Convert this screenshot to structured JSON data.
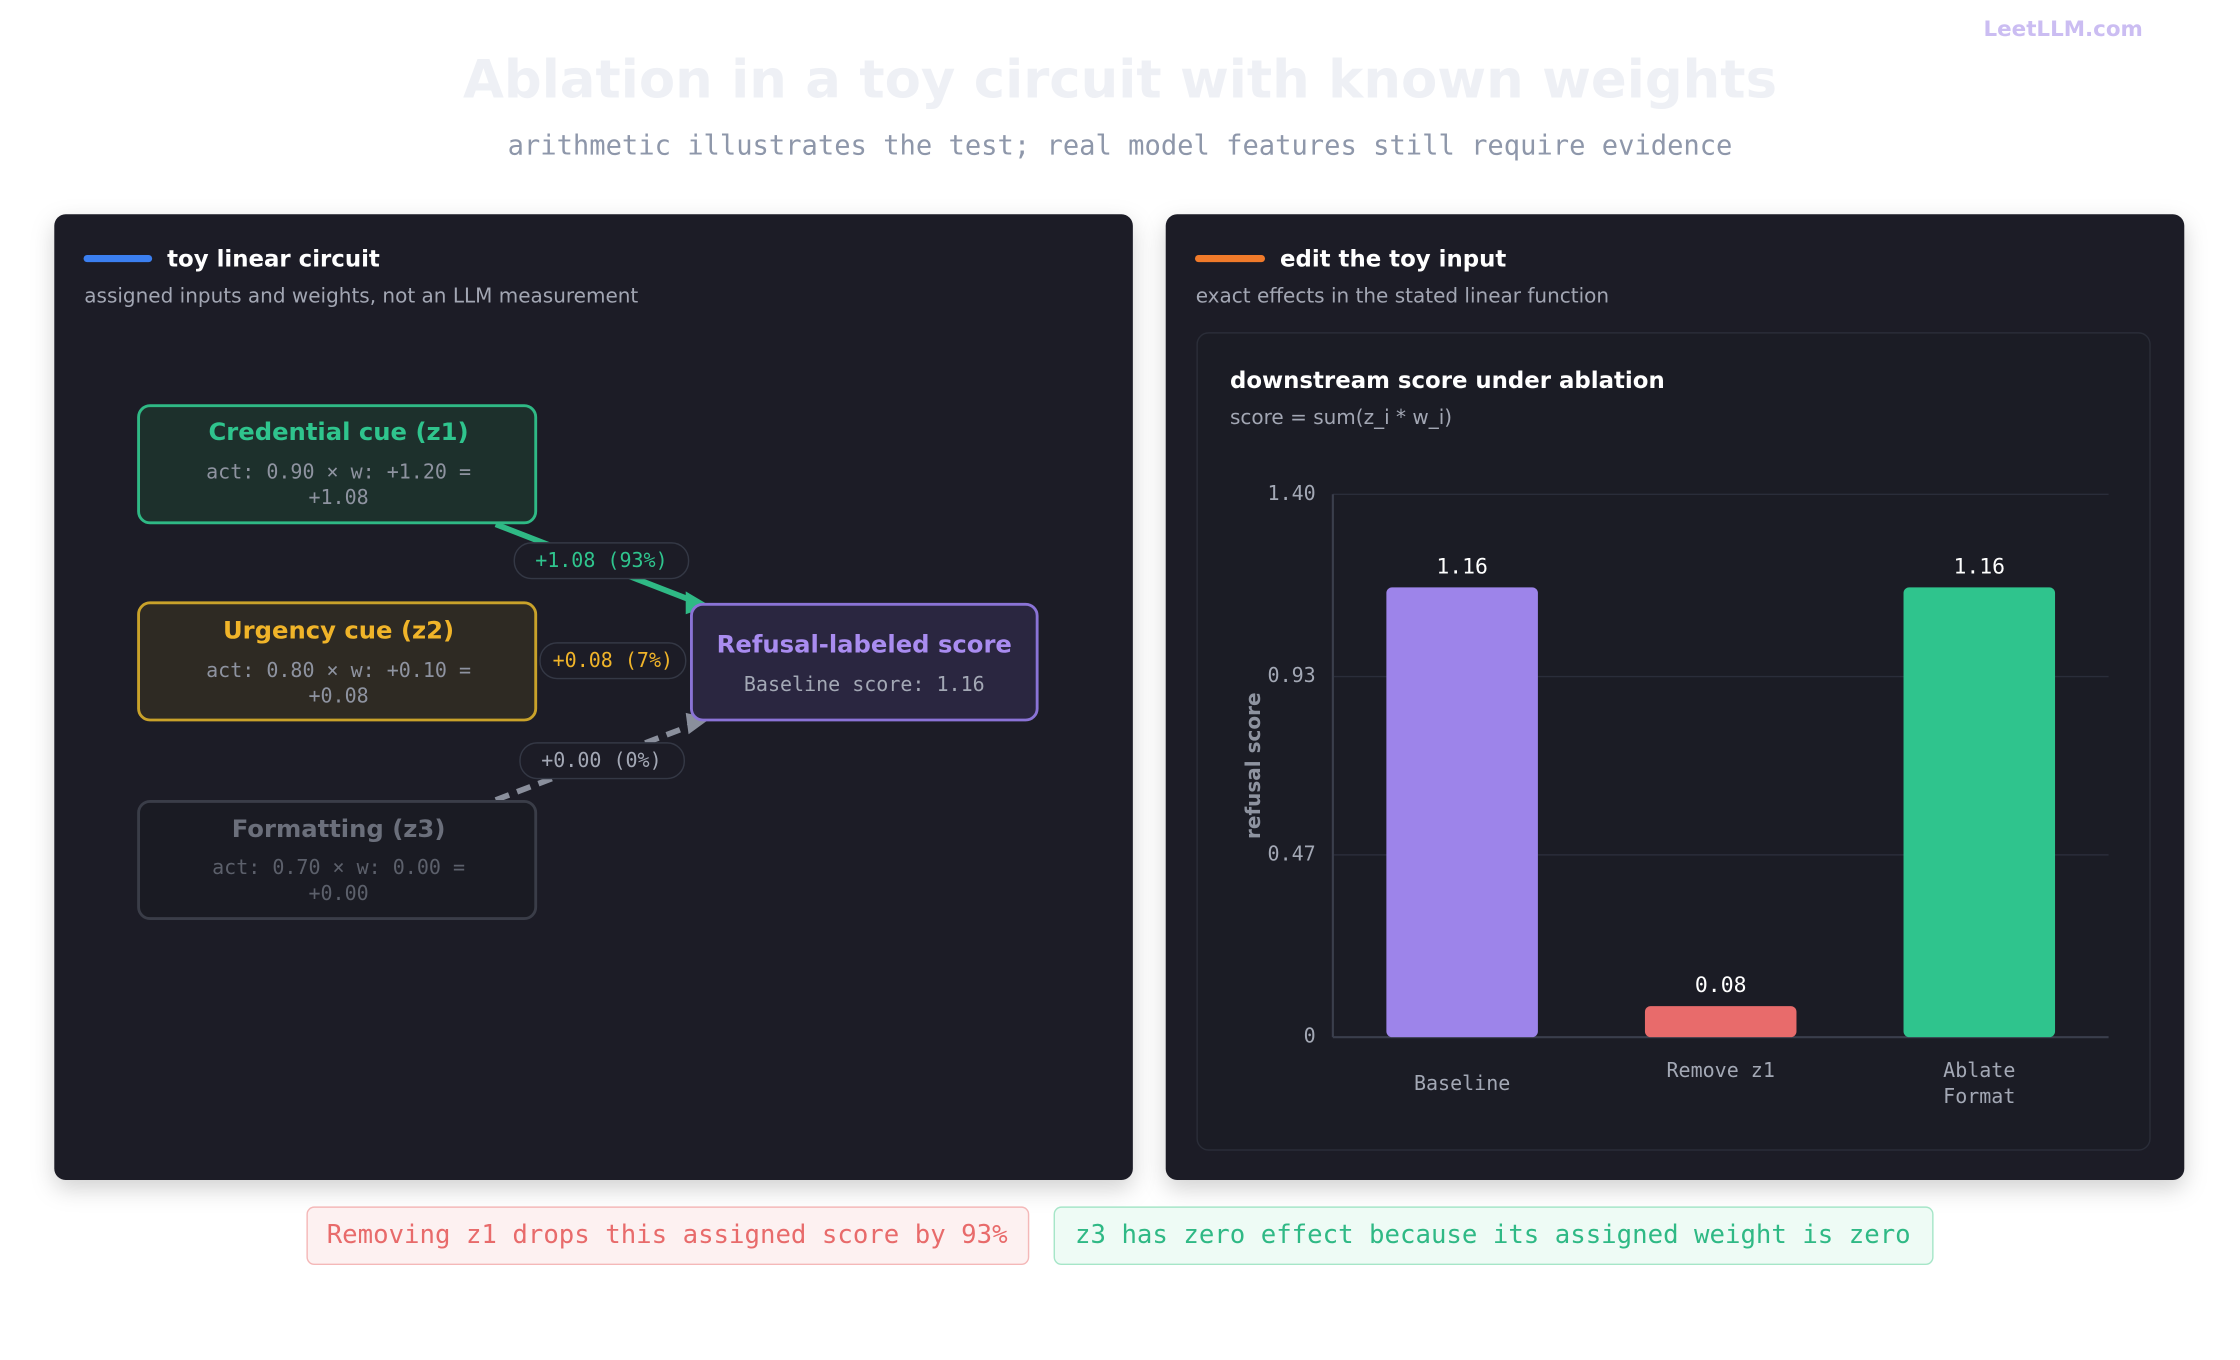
{
  "brand": "LeetLLM.com",
  "header": {
    "title": "Ablation in a toy circuit with known weights",
    "subtitle": "arithmetic illustrates the test; real model features still require evidence"
  },
  "left_panel": {
    "title": "toy linear circuit",
    "subtitle": "assigned inputs and weights, not an LLM measurement",
    "nodes": [
      {
        "label": "Credential cue (z1)",
        "activation": "act: 0.90 × w: +1.20 =",
        "contribution": "+1.08"
      },
      {
        "label": "Urgency cue (z2)",
        "activation": "act: 0.80 × w: +0.10 =",
        "contribution": "+0.08"
      },
      {
        "label": "Formatting (z3)",
        "activation": "act: 0.70 × w: 0.00 =",
        "contribution": "+0.00"
      }
    ],
    "output": {
      "label": "Refusal-labeled score",
      "detail": "Baseline score: 1.16"
    },
    "edges": [
      "+1.08 (93%)",
      "+0.08 (7%)",
      "+0.00 (0%)"
    ]
  },
  "right_panel": {
    "title": "edit the toy input",
    "subtitle": "exact effects in the stated linear function"
  },
  "chart_data": {
    "type": "bar",
    "title": "downstream score under ablation",
    "subtitle": "score = sum(z_i * w_i)",
    "y_label": "refusal score",
    "categories": [
      "Baseline",
      "Remove z1",
      "Ablate Format"
    ],
    "values": [
      1.16,
      0.08,
      1.16
    ],
    "colors": [
      "#9d84ea",
      "#e86b6b",
      "#2fc48d"
    ],
    "ylim": [
      0,
      1.4
    ],
    "yticks": [
      0,
      0.47,
      0.93,
      {
        "value": 1.4,
        "label": "1.40"
      }
    ],
    "grid": true
  },
  "callouts": [
    "Removing z1 drops this assigned score by 93%",
    "z3 has zero effect because its assigned weight is zero"
  ]
}
